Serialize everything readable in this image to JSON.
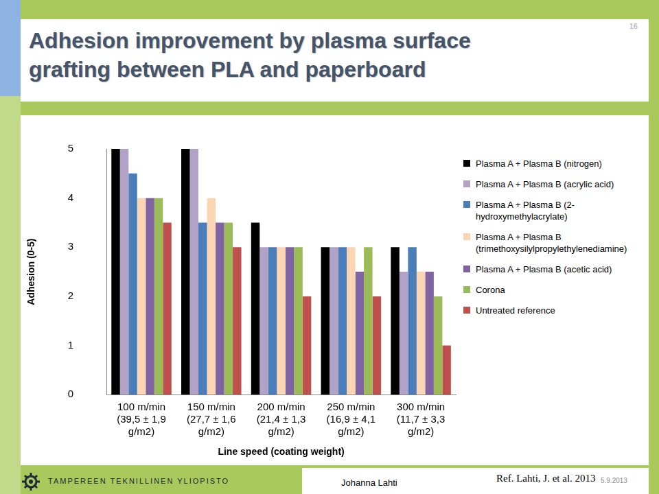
{
  "slide": {
    "title": "Adhesion improvement by plasma surface grafting between PLA and paperboard",
    "page_number": "16",
    "institution": "TAMPEREEN TEKNILLINEN YLIOPISTO",
    "author": "Johanna Lahti",
    "reference": "Ref. Lahti, J. et al. 2013",
    "date": "5.9.2013"
  },
  "chart_data": {
    "type": "bar",
    "x_label": "Line speed (coating weight)",
    "y_label": "Adhesion (0-5)",
    "categories": [
      [
        "100 m/min",
        "(39,5 ± 1,9",
        "g/m2)"
      ],
      [
        "150 m/min",
        "(27,7 ± 1,6",
        "g/m2)"
      ],
      [
        "200 m/min",
        "(21,4 ± 1,3",
        "g/m2)"
      ],
      [
        "250 m/min",
        "(16,9 ± 4,1",
        "g/m2)"
      ],
      [
        "300 m/min",
        "(11,7 ± 3,3",
        "g/m2)"
      ]
    ],
    "series": [
      {
        "name": "Plasma A + Plasma B (nitrogen)",
        "color": "#000000",
        "values": [
          5,
          5,
          3.5,
          3,
          3
        ]
      },
      {
        "name": "Plasma A + Plasma B (acrylic acid)",
        "color": "#b3a2c7",
        "values": [
          5,
          5,
          3,
          3,
          2.5
        ]
      },
      {
        "name": "Plasma A + Plasma B (2-hydroxymethylacrylate)",
        "color": "#4a7ebb",
        "values": [
          4.5,
          3.5,
          3,
          3,
          3
        ]
      },
      {
        "name": "Plasma A + Plasma B (trimethoxysilylpropylethylenediamine)",
        "color": "#fcd5b5",
        "values": [
          4,
          4,
          3,
          3,
          2.5
        ]
      },
      {
        "name": "Plasma A + Plasma B (acetic acid)",
        "color": "#8064a2",
        "values": [
          4,
          3.5,
          3,
          2.5,
          2.5
        ]
      },
      {
        "name": "Corona",
        "color": "#9bbb59",
        "values": [
          4,
          3.5,
          3,
          3,
          2
        ]
      },
      {
        "name": "Untreated reference",
        "color": "#c0504d",
        "values": [
          3.5,
          3,
          2,
          2,
          1
        ]
      }
    ],
    "ylim": [
      0,
      5
    ],
    "yticks": [
      0,
      1,
      2,
      3,
      4,
      5
    ],
    "grid": false,
    "legend": "right"
  }
}
